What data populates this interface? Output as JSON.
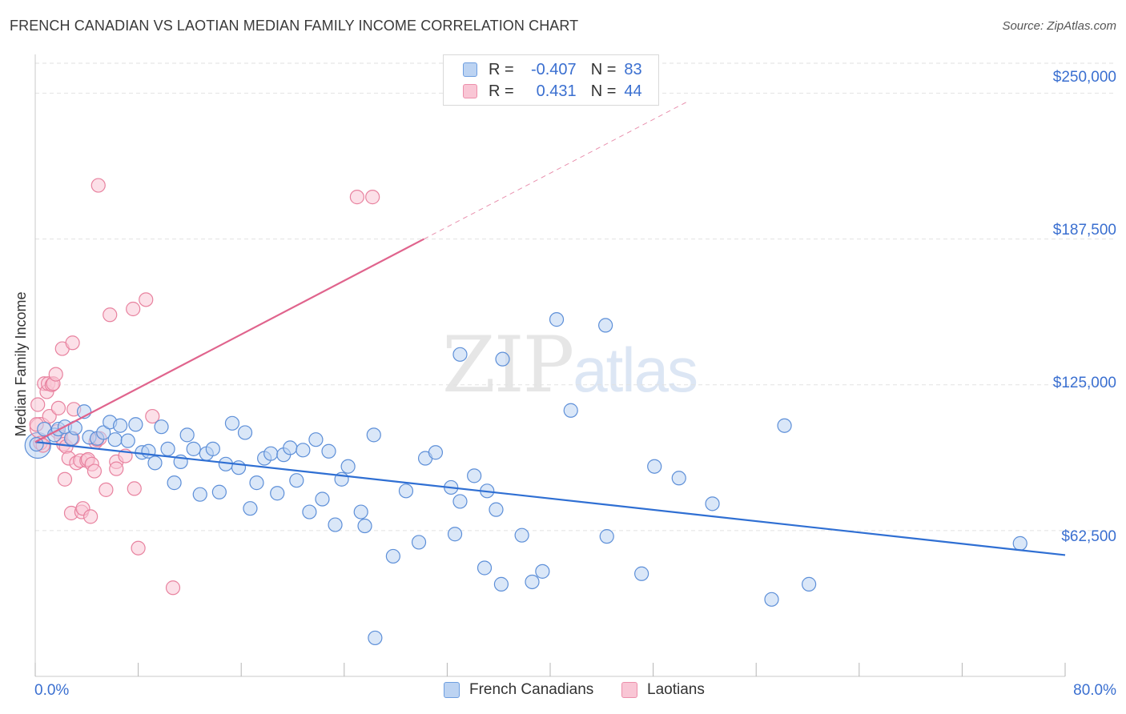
{
  "header": {
    "title": "FRENCH CANADIAN VS LAOTIAN MEDIAN FAMILY INCOME CORRELATION CHART",
    "source": "Source: ZipAtlas.com"
  },
  "legend_top": {
    "rows": [
      {
        "r_label": "R =",
        "r_value": "-0.407",
        "n_label": "N =",
        "n_value": "83"
      },
      {
        "r_label": "R =",
        "r_value": "0.431",
        "n_label": "N =",
        "n_value": "44"
      }
    ]
  },
  "legend_bottom": {
    "items": [
      {
        "label": "French Canadians"
      },
      {
        "label": "Laotians"
      }
    ]
  },
  "watermark": {
    "zip": "ZIP",
    "atlas": "atlas"
  },
  "colors": {
    "blue_fill": "#bcd3f2",
    "blue_stroke": "#5d8fd8",
    "blue_line": "#2f6fd3",
    "pink_fill": "#f9c6d5",
    "pink_stroke": "#e8829f",
    "pink_line": "#e0648d",
    "grid": "#e2e2e2",
    "tick_label": "#3a6fd0"
  },
  "chart_data": {
    "type": "scatter",
    "title": "FRENCH CANADIAN VS LAOTIAN MEDIAN FAMILY INCOME CORRELATION CHART",
    "xlabel": "",
    "ylabel": "Median Family Income",
    "xlim": [
      0,
      80
    ],
    "ylim": [
      0,
      262500
    ],
    "x_tick_labels": [
      "0.0%",
      "80.0%"
    ],
    "y_ticks": [
      62500,
      125000,
      187500,
      250000
    ],
    "y_tick_labels": [
      "$62,500",
      "$125,000",
      "$187,500",
      "$250,000"
    ],
    "grid": true,
    "legend_position": "top-center",
    "series": [
      {
        "name": "French Canadians",
        "color": "#5d8fd8",
        "r": -0.407,
        "n": 83,
        "trend": {
          "x": [
            0,
            80
          ],
          "y": [
            100500,
            52000
          ]
        },
        "points": [
          [
            0.1,
            99500
          ],
          [
            0.7,
            106000
          ],
          [
            1.5,
            103500
          ],
          [
            1.8,
            106000
          ],
          [
            2.3,
            107000
          ],
          [
            2.8,
            102000
          ],
          [
            3.1,
            106500
          ],
          [
            3.8,
            113500
          ],
          [
            4.2,
            102500
          ],
          [
            4.8,
            102000
          ],
          [
            5.3,
            104500
          ],
          [
            5.8,
            109000
          ],
          [
            6.2,
            101500
          ],
          [
            6.6,
            107500
          ],
          [
            7.2,
            101000
          ],
          [
            7.8,
            108000
          ],
          [
            8.3,
            96000
          ],
          [
            8.8,
            96500
          ],
          [
            9.3,
            91500
          ],
          [
            9.8,
            107000
          ],
          [
            10.3,
            97500
          ],
          [
            10.8,
            83000
          ],
          [
            11.3,
            92000
          ],
          [
            11.8,
            103500
          ],
          [
            12.3,
            97500
          ],
          [
            12.8,
            78000
          ],
          [
            13.3,
            95500
          ],
          [
            13.8,
            97500
          ],
          [
            14.3,
            79000
          ],
          [
            14.8,
            91000
          ],
          [
            15.3,
            108500
          ],
          [
            15.8,
            89500
          ],
          [
            16.3,
            104500
          ],
          [
            16.7,
            72000
          ],
          [
            17.2,
            83000
          ],
          [
            17.8,
            93500
          ],
          [
            18.3,
            95500
          ],
          [
            18.8,
            78500
          ],
          [
            19.3,
            95000
          ],
          [
            19.8,
            98000
          ],
          [
            20.3,
            84000
          ],
          [
            20.8,
            97000
          ],
          [
            21.3,
            70500
          ],
          [
            21.8,
            101500
          ],
          [
            22.3,
            76000
          ],
          [
            22.8,
            96500
          ],
          [
            23.3,
            65000
          ],
          [
            23.8,
            84500
          ],
          [
            24.3,
            90000
          ],
          [
            25.3,
            70500
          ],
          [
            25.6,
            64500
          ],
          [
            26.3,
            103500
          ],
          [
            26.4,
            16500
          ],
          [
            27.8,
            51500
          ],
          [
            28.8,
            79500
          ],
          [
            29.8,
            57500
          ],
          [
            30.3,
            93500
          ],
          [
            31.1,
            96000
          ],
          [
            32.3,
            81000
          ],
          [
            32.6,
            61000
          ],
          [
            33.0,
            75000
          ],
          [
            33.0,
            138000
          ],
          [
            34.1,
            86000
          ],
          [
            34.9,
            46500
          ],
          [
            35.1,
            79500
          ],
          [
            35.8,
            71500
          ],
          [
            36.2,
            39500
          ],
          [
            36.3,
            136000
          ],
          [
            37.8,
            60500
          ],
          [
            38.6,
            40500
          ],
          [
            39.4,
            45000
          ],
          [
            40.5,
            153000
          ],
          [
            41.6,
            114000
          ],
          [
            44.3,
            150500
          ],
          [
            44.4,
            60000
          ],
          [
            47.1,
            44000
          ],
          [
            48.1,
            90000
          ],
          [
            50.0,
            85000
          ],
          [
            52.6,
            74000
          ],
          [
            57.2,
            33000
          ],
          [
            58.2,
            107500
          ],
          [
            60.1,
            39500
          ],
          [
            76.5,
            57000
          ]
        ]
      },
      {
        "name": "Laotians",
        "color": "#e8829f",
        "r": 0.431,
        "n": 44,
        "trend": {
          "x": [
            0,
            30.2
          ],
          "y": [
            100500,
            187500
          ]
        },
        "trend_extension": {
          "x": [
            30.2,
            50.7
          ],
          "y": [
            187500,
            246500
          ]
        },
        "points": [
          [
            0.1,
            108000
          ],
          [
            0.2,
            116500
          ],
          [
            0.4,
            100000
          ],
          [
            0.6,
            99000
          ],
          [
            0.7,
            125500
          ],
          [
            0.9,
            122000
          ],
          [
            1.0,
            125500
          ],
          [
            1.1,
            111500
          ],
          [
            1.3,
            125000
          ],
          [
            1.4,
            125500
          ],
          [
            1.6,
            129500
          ],
          [
            1.7,
            105000
          ],
          [
            1.8,
            115000
          ],
          [
            2.0,
            102500
          ],
          [
            2.1,
            140500
          ],
          [
            2.2,
            99500
          ],
          [
            2.3,
            84500
          ],
          [
            2.4,
            98500
          ],
          [
            2.6,
            93500
          ],
          [
            2.8,
            70000
          ],
          [
            2.9,
            102000
          ],
          [
            2.9,
            143000
          ],
          [
            3.0,
            114500
          ],
          [
            3.2,
            91500
          ],
          [
            3.5,
            92500
          ],
          [
            3.6,
            70500
          ],
          [
            3.7,
            72000
          ],
          [
            4.0,
            92500
          ],
          [
            4.1,
            93000
          ],
          [
            4.3,
            68500
          ],
          [
            4.4,
            91000
          ],
          [
            4.6,
            88000
          ],
          [
            4.7,
            100500
          ],
          [
            4.8,
            101500
          ],
          [
            4.9,
            210500
          ],
          [
            5.0,
            102000
          ],
          [
            5.5,
            80000
          ],
          [
            5.8,
            155000
          ],
          [
            6.3,
            92000
          ],
          [
            6.3,
            89000
          ],
          [
            7.0,
            94500
          ],
          [
            7.6,
            157500
          ],
          [
            7.7,
            80500
          ],
          [
            8.0,
            55000
          ]
        ],
        "points_extra": [
          [
            8.6,
            161500
          ],
          [
            9.1,
            111500
          ],
          [
            10.7,
            38000
          ],
          [
            25.0,
            205500
          ],
          [
            26.2,
            205500
          ]
        ]
      }
    ]
  }
}
